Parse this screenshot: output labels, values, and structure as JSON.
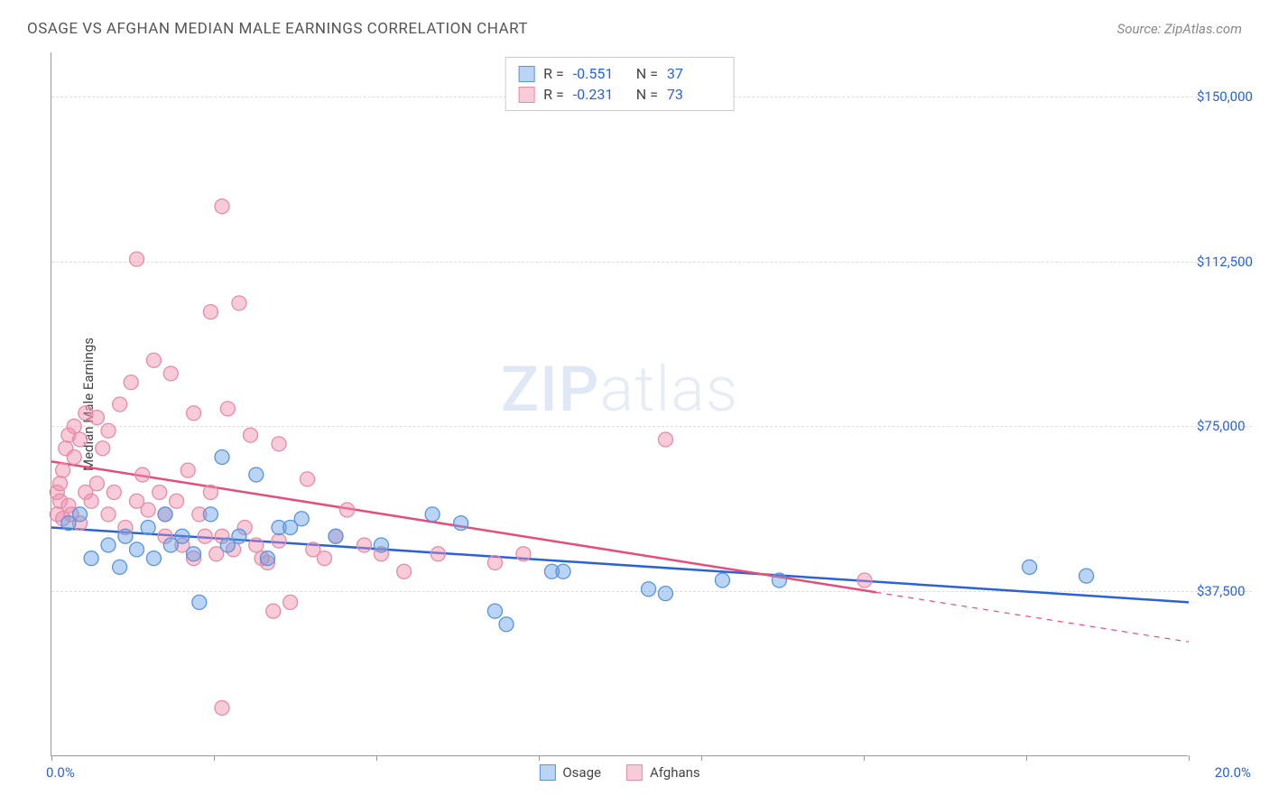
{
  "title": "OSAGE VS AFGHAN MEDIAN MALE EARNINGS CORRELATION CHART",
  "source": "Source: ZipAtlas.com",
  "y_axis_title": "Median Male Earnings",
  "watermark": {
    "part1": "ZIP",
    "part2": "atlas"
  },
  "chart": {
    "type": "scatter-with-regression",
    "xlim": [
      0,
      20
    ],
    "ylim": [
      0,
      160000
    ],
    "x_min_label": "0.0%",
    "x_max_label": "20.0%",
    "x_ticks": [
      0,
      2.857,
      5.714,
      8.571,
      11.429,
      14.286,
      17.143,
      20
    ],
    "y_gridlines": [
      {
        "value": 37500,
        "label": "$37,500"
      },
      {
        "value": 75000,
        "label": "$75,000"
      },
      {
        "value": 112500,
        "label": "$112,500"
      },
      {
        "value": 150000,
        "label": "$150,000"
      }
    ],
    "background_color": "#ffffff",
    "grid_color": "#dddddd",
    "series": [
      {
        "name": "Osage",
        "marker_fill": "rgba(100,160,230,0.45)",
        "marker_stroke": "#5b93d6",
        "line_color": "#2962d9",
        "line_width": 2.5,
        "marker_radius": 8,
        "R": "-0.551",
        "N": "37",
        "regression": {
          "x1": 0,
          "y1": 52000,
          "x2": 20,
          "y2": 35000,
          "solid_until_x": 20
        },
        "points": [
          [
            0.3,
            53000
          ],
          [
            0.5,
            55000
          ],
          [
            0.7,
            45000
          ],
          [
            1.0,
            48000
          ],
          [
            1.2,
            43000
          ],
          [
            1.3,
            50000
          ],
          [
            1.5,
            47000
          ],
          [
            1.7,
            52000
          ],
          [
            1.8,
            45000
          ],
          [
            2.0,
            55000
          ],
          [
            2.1,
            48000
          ],
          [
            2.3,
            50000
          ],
          [
            2.5,
            46000
          ],
          [
            2.6,
            35000
          ],
          [
            2.8,
            55000
          ],
          [
            3.0,
            68000
          ],
          [
            3.1,
            48000
          ],
          [
            3.3,
            50000
          ],
          [
            3.6,
            64000
          ],
          [
            3.8,
            45000
          ],
          [
            4.0,
            52000
          ],
          [
            4.2,
            52000
          ],
          [
            4.4,
            54000
          ],
          [
            5.0,
            50000
          ],
          [
            5.8,
            48000
          ],
          [
            6.7,
            55000
          ],
          [
            7.2,
            53000
          ],
          [
            7.8,
            33000
          ],
          [
            8.0,
            30000
          ],
          [
            8.8,
            42000
          ],
          [
            9.0,
            42000
          ],
          [
            10.5,
            38000
          ],
          [
            10.8,
            37000
          ],
          [
            11.8,
            40000
          ],
          [
            12.8,
            40000
          ],
          [
            17.2,
            43000
          ],
          [
            18.2,
            41000
          ]
        ]
      },
      {
        "name": "Afghans",
        "marker_fill": "rgba(240,140,170,0.45)",
        "marker_stroke": "#e68aa8",
        "line_color": "#e64d7a",
        "line_width": 2.5,
        "marker_radius": 8,
        "R": "-0.231",
        "N": "73",
        "regression": {
          "x1": 0,
          "y1": 67000,
          "x2": 20,
          "y2": 26000,
          "solid_until_x": 14.5
        },
        "points": [
          [
            0.1,
            55000
          ],
          [
            0.1,
            60000
          ],
          [
            0.15,
            58000
          ],
          [
            0.15,
            62000
          ],
          [
            0.2,
            54000
          ],
          [
            0.2,
            65000
          ],
          [
            0.25,
            70000
          ],
          [
            0.3,
            57000
          ],
          [
            0.3,
            73000
          ],
          [
            0.35,
            55000
          ],
          [
            0.4,
            68000
          ],
          [
            0.4,
            75000
          ],
          [
            0.5,
            53000
          ],
          [
            0.5,
            72000
          ],
          [
            0.6,
            60000
          ],
          [
            0.6,
            78000
          ],
          [
            0.7,
            58000
          ],
          [
            0.8,
            77000
          ],
          [
            0.8,
            62000
          ],
          [
            0.9,
            70000
          ],
          [
            1.0,
            55000
          ],
          [
            1.0,
            74000
          ],
          [
            1.1,
            60000
          ],
          [
            1.2,
            80000
          ],
          [
            1.3,
            52000
          ],
          [
            1.4,
            85000
          ],
          [
            1.5,
            113000
          ],
          [
            1.5,
            58000
          ],
          [
            1.6,
            64000
          ],
          [
            1.7,
            56000
          ],
          [
            1.8,
            90000
          ],
          [
            1.9,
            60000
          ],
          [
            2.0,
            50000
          ],
          [
            2.0,
            55000
          ],
          [
            2.1,
            87000
          ],
          [
            2.2,
            58000
          ],
          [
            2.3,
            48000
          ],
          [
            2.4,
            65000
          ],
          [
            2.5,
            78000
          ],
          [
            2.5,
            45000
          ],
          [
            2.6,
            55000
          ],
          [
            2.7,
            50000
          ],
          [
            2.8,
            60000
          ],
          [
            2.8,
            101000
          ],
          [
            2.9,
            46000
          ],
          [
            3.0,
            125000
          ],
          [
            3.0,
            50000
          ],
          [
            3.0,
            11000
          ],
          [
            3.1,
            79000
          ],
          [
            3.2,
            47000
          ],
          [
            3.3,
            103000
          ],
          [
            3.4,
            52000
          ],
          [
            3.5,
            73000
          ],
          [
            3.6,
            48000
          ],
          [
            3.7,
            45000
          ],
          [
            3.8,
            44000
          ],
          [
            3.9,
            33000
          ],
          [
            4.0,
            71000
          ],
          [
            4.0,
            49000
          ],
          [
            4.2,
            35000
          ],
          [
            4.5,
            63000
          ],
          [
            4.6,
            47000
          ],
          [
            4.8,
            45000
          ],
          [
            5.0,
            50000
          ],
          [
            5.2,
            56000
          ],
          [
            5.5,
            48000
          ],
          [
            5.8,
            46000
          ],
          [
            6.2,
            42000
          ],
          [
            6.8,
            46000
          ],
          [
            7.8,
            44000
          ],
          [
            8.3,
            46000
          ],
          [
            10.8,
            72000
          ],
          [
            14.3,
            40000
          ]
        ]
      }
    ]
  }
}
